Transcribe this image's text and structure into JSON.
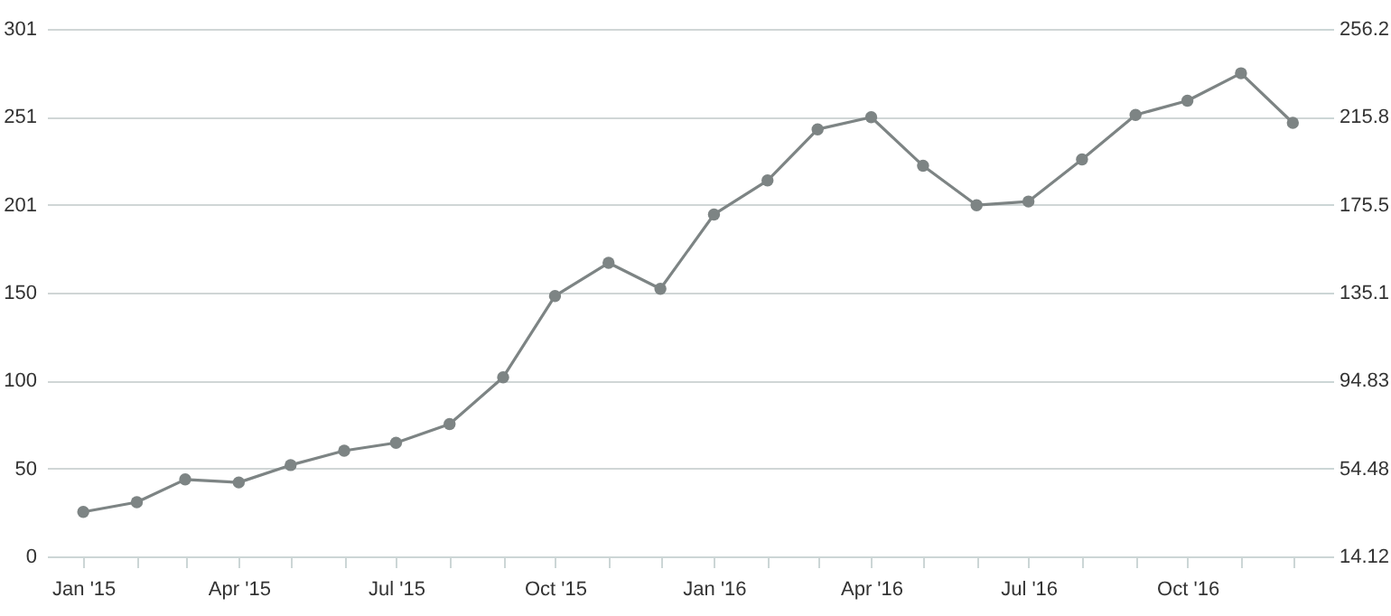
{
  "chart_data": {
    "type": "line",
    "x": [
      "2015-01",
      "2015-02",
      "2015-03",
      "2015-04",
      "2015-05",
      "2015-06",
      "2015-07",
      "2015-08",
      "2015-09",
      "2015-10",
      "2015-11",
      "2015-12",
      "2016-01",
      "2016-02",
      "2016-03",
      "2016-04",
      "2016-05",
      "2016-06",
      "2016-07",
      "2016-08",
      "2016-09",
      "2016-10",
      "2016-11",
      "2016-12"
    ],
    "series": [
      {
        "color": "#7d8484",
        "values": [
          25.4,
          30.9,
          43.9,
          42.2,
          52.1,
          60.3,
          64.8,
          75.5,
          102.2,
          148.6,
          167.5,
          152.7,
          195.1,
          214.5,
          243.7,
          250.6,
          222.9,
          200.4,
          202.5,
          226.5,
          251.9,
          260,
          275.7,
          247.4
        ]
      }
    ],
    "xlim": [
      "2014-12-11",
      "2016-12-16"
    ],
    "xticks": [
      {
        "value": "2015-01",
        "label": "Jan '15"
      },
      {
        "value": "2015-02",
        "label": null
      },
      {
        "value": "2015-03",
        "label": null
      },
      {
        "value": "2015-04",
        "label": "Apr '15"
      },
      {
        "value": "2015-05",
        "label": null
      },
      {
        "value": "2015-06",
        "label": null
      },
      {
        "value": "2015-07",
        "label": "Jul '15"
      },
      {
        "value": "2015-08",
        "label": null
      },
      {
        "value": "2015-09",
        "label": null
      },
      {
        "value": "2015-10",
        "label": "Oct '15"
      },
      {
        "value": "2015-11",
        "label": null
      },
      {
        "value": "2015-12",
        "label": null
      },
      {
        "value": "2016-01",
        "label": "Jan '16"
      },
      {
        "value": "2016-02",
        "label": null
      },
      {
        "value": "2016-03",
        "label": null
      },
      {
        "value": "2016-04",
        "label": "Apr '16"
      },
      {
        "value": "2016-05",
        "label": null
      },
      {
        "value": "2016-06",
        "label": null
      },
      {
        "value": "2016-07",
        "label": "Jul '16"
      },
      {
        "value": "2016-08",
        "label": null
      },
      {
        "value": "2016-09",
        "label": null
      },
      {
        "value": "2016-10",
        "label": "Oct '16"
      },
      {
        "value": "2016-11",
        "label": null
      },
      {
        "value": "2016-12",
        "label": null
      }
    ],
    "ylim": [
      0,
      301
    ],
    "yticks": [
      0,
      {
        "value": 50.17,
        "label": "50"
      },
      {
        "value": 100.33,
        "label": "100"
      },
      {
        "value": 150.5,
        "label": "150"
      },
      {
        "value": 200.67,
        "label": "201"
      },
      {
        "value": 250.83,
        "label": "251"
      },
      301
    ],
    "y2lim": [
      14.12,
      256.2
    ],
    "y2ticks": [
      14.12,
      54.48,
      94.83,
      135.1,
      175.5,
      215.8,
      256.2
    ],
    "grid": "y",
    "marker": "circle",
    "line_style": "solid"
  }
}
